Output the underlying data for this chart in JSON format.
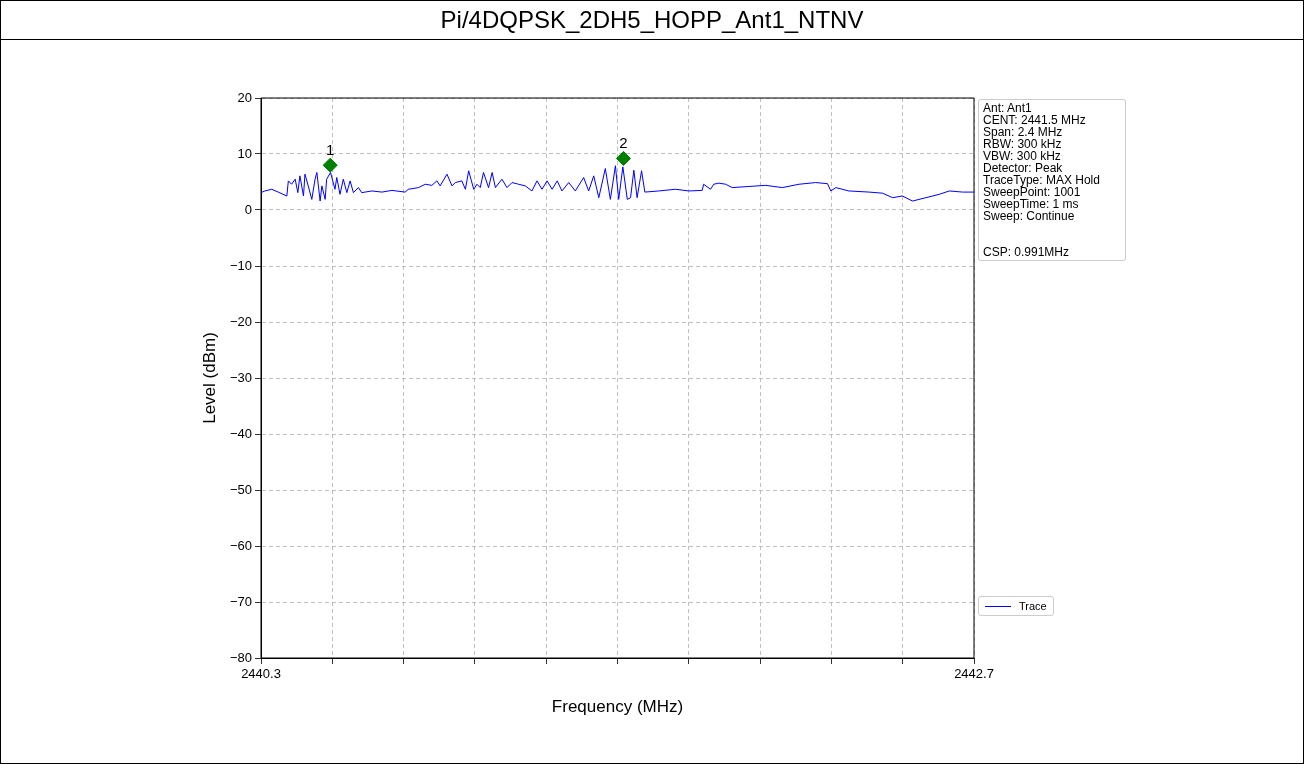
{
  "chart_data": {
    "type": "line",
    "title": "Pi/4DQPSK_2DH5_HOPP_Ant1_NTNV",
    "xlabel": "Frequency (MHz)",
    "ylabel": "Level (dBm)",
    "xlim": [
      2440.3,
      2442.7
    ],
    "xticks": [
      2440.3,
      {
        "value": 2440.54,
        "label": null
      },
      {
        "value": 2440.78,
        "label": null
      },
      {
        "value": 2441.02,
        "label": null
      },
      {
        "value": 2441.26,
        "label": null
      },
      {
        "value": 2441.5,
        "label": null
      },
      {
        "value": 2441.74,
        "label": null
      },
      {
        "value": 2441.98,
        "label": null
      },
      {
        "value": 2442.22,
        "label": null
      },
      {
        "value": 2442.46,
        "label": null
      },
      2442.7
    ],
    "ylim": [
      -80,
      20
    ],
    "yticks": [
      -80,
      -70,
      -60,
      -50,
      -40,
      -30,
      -20,
      -10,
      0,
      10,
      20
    ],
    "grid": true,
    "legend": "bottom right",
    "series": [
      {
        "name": "Trace",
        "type": "line",
        "color": "#0000ff",
        "marker": "none",
        "line_style": "solid",
        "x": [
          2440.3,
          2440.313,
          2440.336,
          2440.358,
          2440.387,
          2440.392,
          2440.403,
          2440.415,
          2440.424,
          2440.431,
          2440.443,
          2440.448,
          2440.459,
          2440.471,
          2440.482,
          2440.488,
          2440.499,
          2440.505,
          2440.516,
          2440.521,
          2440.534,
          2440.549,
          2440.555,
          2440.566,
          2440.577,
          2440.589,
          2440.6,
          2440.611,
          2440.628,
          2440.639,
          2440.673,
          2440.707,
          2440.741,
          2440.785,
          2440.796,
          2440.83,
          2440.853,
          2440.875,
          2440.892,
          2440.903,
          2440.926,
          2440.943,
          2440.954,
          2440.976,
          2440.988,
          2440.999,
          2441.016,
          2441.027,
          2441.038,
          2441.049,
          2441.066,
          2441.078,
          2441.089,
          2441.111,
          2441.128,
          2441.145,
          2441.167,
          2441.19,
          2441.212,
          2441.229,
          2441.246,
          2441.263,
          2441.28,
          2441.297,
          2441.313,
          2441.336,
          2441.358,
          2441.386,
          2441.403,
          2441.42,
          2441.437,
          2441.459,
          2441.476,
          2441.493,
          2441.504,
          2441.518,
          2441.533,
          2441.544,
          2441.555,
          2441.566,
          2441.581,
          2441.592,
          2441.639,
          2441.695,
          2441.74,
          2441.785,
          2441.79,
          2441.813,
          2441.824,
          2441.841,
          2441.864,
          2441.886,
          2441.942,
          2441.999,
          2442.055,
          2442.111,
          2442.167,
          2442.207,
          2442.218,
          2442.235,
          2442.279,
          2442.347,
          2442.392,
          2442.426,
          2442.459,
          2442.493,
          2442.538,
          2442.583,
          2442.617,
          2442.662,
          2442.7
        ],
        "values": [
          3.1,
          3.4,
          3.7,
          3.2,
          2.5,
          5.2,
          4.6,
          5.5,
          3.1,
          6.1,
          2.5,
          6.4,
          4.3,
          1.9,
          5.5,
          6.7,
          1.6,
          4.3,
          1.9,
          5.5,
          6.7,
          3.7,
          5.8,
          2.8,
          5.5,
          3.1,
          5.2,
          3.1,
          4.0,
          3.1,
          3.4,
          3.2,
          3.5,
          3.2,
          3.7,
          4.0,
          4.6,
          4.4,
          5.2,
          4.3,
          6.4,
          4.3,
          4.9,
          5.2,
          3.7,
          7.0,
          3.7,
          4.6,
          4.0,
          6.7,
          4.0,
          6.7,
          4.0,
          5.5,
          4.0,
          4.9,
          4.6,
          4.3,
          3.4,
          5.2,
          3.7,
          5.2,
          3.7,
          5.2,
          3.4,
          4.9,
          3.4,
          5.8,
          3.4,
          6.1,
          2.2,
          7.4,
          1.9,
          7.9,
          1.9,
          7.7,
          1.9,
          2.2,
          7.1,
          2.2,
          7.0,
          3.2,
          3.4,
          3.7,
          3.4,
          3.5,
          4.6,
          3.7,
          4.6,
          4.8,
          4.6,
          4.0,
          4.2,
          4.4,
          4.0,
          4.6,
          4.9,
          4.7,
          3.4,
          4.0,
          3.4,
          3.2,
          3.0,
          2.2,
          2.5,
          1.6,
          2.2,
          2.8,
          3.4,
          3.2,
          3.2
        ]
      },
      {
        "type": "scatter",
        "color": "#008000",
        "marker": "diamond",
        "x": [
          2440.533,
          2441.52
        ],
        "values": [
          8.0,
          9.2
        ]
      }
    ],
    "annotations": [
      {
        "text": "1",
        "x": 2440.533,
        "y": 8.0
      },
      {
        "text": "2",
        "x": 2441.52,
        "y": 9.2
      },
      "Ant: Ant1",
      "CENT: 2441.5 MHz",
      "Span: 2.4 MHz",
      "RBW: 300 kHz",
      "VBW: 300 kHz",
      "Detector: Peak",
      "TraceType: MAX Hold",
      "SweepPoint: 1001",
      "SweepTime: 1 ms",
      "Sweep: Continue",
      "CSP: 0.991MHz"
    ]
  }
}
